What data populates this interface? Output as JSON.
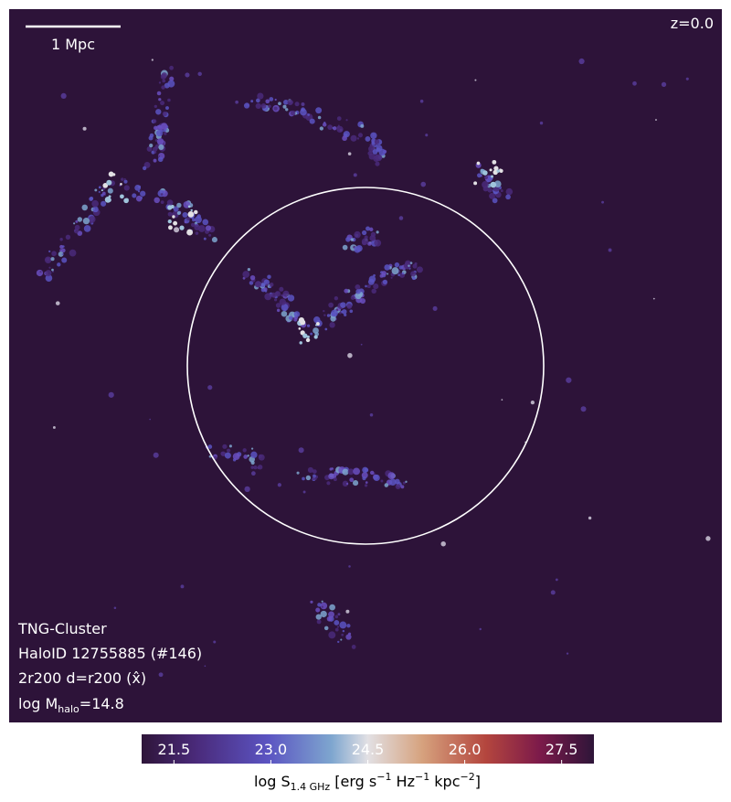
{
  "chart_data": {
    "type": "image",
    "scale_bar": "1 Mpc",
    "redshift": "z=0.0",
    "annotations": [
      "TNG-Cluster",
      "HaloID 12755885 (#146)",
      "2r200 d=r200 (x̂)"
    ],
    "mass_label": [
      "log M",
      "halo",
      "=14.8"
    ],
    "colorbar": {
      "clim": [
        21,
        28
      ],
      "ticks": [
        21.5,
        {
          "value": 23,
          "label": "23.0"
        },
        24.5,
        {
          "value": 26,
          "label": "26.0"
        },
        27.5
      ],
      "label": [
        "log S",
        "1.4 GHz",
        " [erg s",
        "−1",
        " Hz",
        "−1",
        " kpc",
        "−2",
        "]"
      ]
    }
  }
}
